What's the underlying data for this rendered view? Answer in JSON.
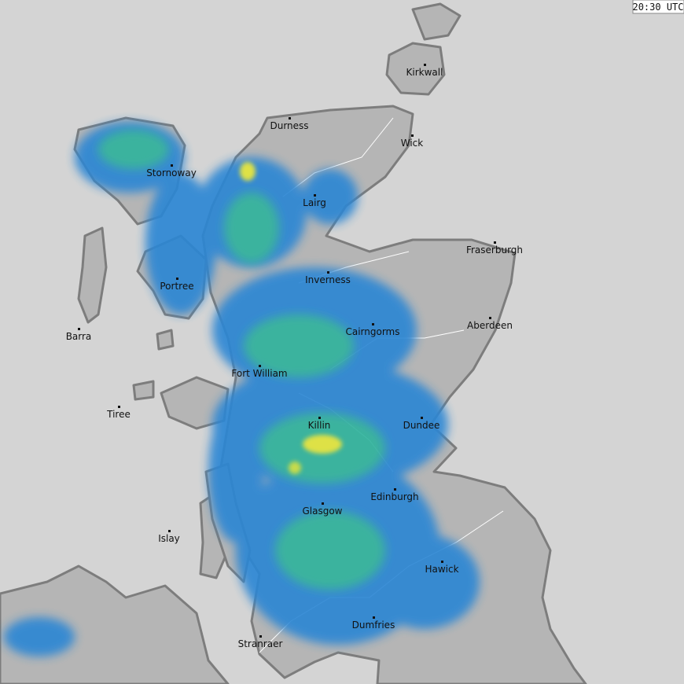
{
  "timestamp": "20:30 UTC",
  "places": [
    "Kirkwall",
    "Durness",
    "Wick",
    "Stornoway",
    "Lairg",
    "Fraserburgh",
    "Inverness",
    "Portree",
    "Aberdeen",
    "Barra",
    "Cairngorms",
    "Fort William",
    "Tiree",
    "Killin",
    "Dundee",
    "Edinburgh",
    "Glasgow",
    "Islay",
    "Hawick",
    "Dumfries",
    "Stranraer"
  ]
}
